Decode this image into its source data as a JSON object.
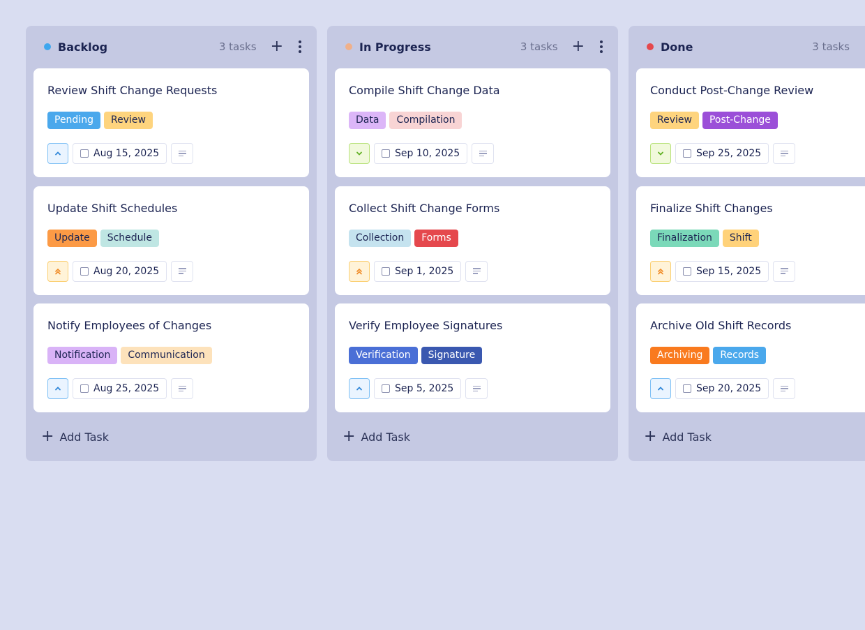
{
  "columns": [
    {
      "title": "Backlog",
      "count": "3 tasks",
      "dot": "#3ea6ee",
      "show_actions": true,
      "add_label": "Add Task",
      "cards": [
        {
          "title": "Review Shift Change Requests",
          "tags": [
            {
              "label": "Pending",
              "bg": "#4aa8ec",
              "fg": "#ffffff"
            },
            {
              "label": "Review",
              "bg": "#fed47e",
              "fg": "#1c2452"
            }
          ],
          "priority": "medium",
          "date": "Aug 15, 2025"
        },
        {
          "title": "Update Shift Schedules",
          "tags": [
            {
              "label": "Update",
              "bg": "#fc9a45",
              "fg": "#1c2452"
            },
            {
              "label": "Schedule",
              "bg": "#bfe6e3",
              "fg": "#1c2452"
            }
          ],
          "priority": "high",
          "date": "Aug 20, 2025"
        },
        {
          "title": "Notify Employees of Changes",
          "tags": [
            {
              "label": "Notification",
              "bg": "#d9b3f7",
              "fg": "#1c2452"
            },
            {
              "label": "Communication",
              "bg": "#fde2bb",
              "fg": "#1c2452"
            }
          ],
          "priority": "medium",
          "date": "Aug 25, 2025"
        }
      ]
    },
    {
      "title": "In Progress",
      "count": "3 tasks",
      "dot": "#f0b08a",
      "show_actions": true,
      "add_label": "Add Task",
      "cards": [
        {
          "title": "Compile Shift Change Data",
          "tags": [
            {
              "label": "Data",
              "bg": "#dcb6f8",
              "fg": "#1c2452"
            },
            {
              "label": "Compilation",
              "bg": "#f8d4d4",
              "fg": "#1c2452"
            }
          ],
          "priority": "low",
          "date": "Sep 10, 2025"
        },
        {
          "title": "Collect Shift Change Forms",
          "tags": [
            {
              "label": "Collection",
              "bg": "#c5e3ef",
              "fg": "#1c2452"
            },
            {
              "label": "Forms",
              "bg": "#e5484d",
              "fg": "#ffffff"
            }
          ],
          "priority": "high",
          "date": "Sep 1, 2025"
        },
        {
          "title": "Verify Employee Signatures",
          "tags": [
            {
              "label": "Verification",
              "bg": "#4a6fd6",
              "fg": "#ffffff"
            },
            {
              "label": "Signature",
              "bg": "#3a58b0",
              "fg": "#ffffff"
            }
          ],
          "priority": "medium",
          "date": "Sep 5, 2025"
        }
      ]
    },
    {
      "title": "Done",
      "count": "3 tasks",
      "dot": "#e5484d",
      "show_actions": true,
      "add_label": "Add Task",
      "cards": [
        {
          "title": "Conduct Post-Change Review",
          "tags": [
            {
              "label": "Review",
              "bg": "#fed47e",
              "fg": "#1c2452"
            },
            {
              "label": "Post-Change",
              "bg": "#9b4fd8",
              "fg": "#ffffff"
            }
          ],
          "priority": "low",
          "date": "Sep 25, 2025"
        },
        {
          "title": "Finalize Shift Changes",
          "tags": [
            {
              "label": "Finalization",
              "bg": "#7bd9b9",
              "fg": "#1c2452"
            },
            {
              "label": "Shift",
              "bg": "#ffd27a",
              "fg": "#1c2452"
            }
          ],
          "priority": "high",
          "date": "Sep 15, 2025"
        },
        {
          "title": "Archive Old Shift Records",
          "tags": [
            {
              "label": "Archiving",
              "bg": "#f97a1e",
              "fg": "#ffffff"
            },
            {
              "label": "Records",
              "bg": "#4aa8ec",
              "fg": "#ffffff"
            }
          ],
          "priority": "medium",
          "date": "Sep 20, 2025"
        }
      ]
    }
  ],
  "priority_styles": {
    "medium": {
      "icon": "chevron-up-icon",
      "bg": "#eaf4ff",
      "border": "#7fc0f5",
      "color": "#2f86d8"
    },
    "low": {
      "icon": "chevron-down-icon",
      "bg": "#f1f9dc",
      "border": "#b7e27a",
      "color": "#5fb021"
    },
    "high": {
      "icon": "double-chevron-up-icon",
      "bg": "#fff3d8",
      "border": "#fbcf72",
      "color": "#f08a24"
    }
  }
}
